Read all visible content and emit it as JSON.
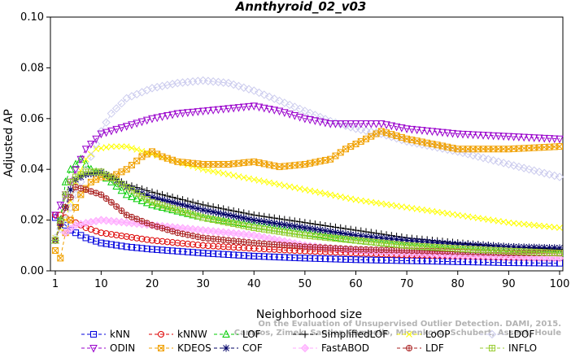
{
  "chart_data": {
    "type": "line",
    "title": "Annthyroid_02_v03",
    "xlabel": "Neighborhood size",
    "ylabel": "Adjusted AP",
    "xlim": [
      1,
      100
    ],
    "ylim": [
      0,
      0.1
    ],
    "xticks": [
      1,
      10,
      20,
      30,
      40,
      50,
      60,
      70,
      80,
      90,
      100
    ],
    "yticks": [
      0.0,
      0.02,
      0.04,
      0.06,
      0.08,
      0.1
    ],
    "ytick_labels": [
      "0.00",
      "0.02",
      "0.04",
      "0.06",
      "0.08",
      "0.10"
    ],
    "legend_position": "bottom",
    "grid": false,
    "watermark": [
      "Campos, Zimek, Sander, Campello, Micenkova, Schubert, Assent, Houle",
      "On the Evaluation of Unsupervised Outlier Detection. DAMI, 2015."
    ],
    "series": [
      {
        "name": "kNN",
        "color": "#0000dd",
        "marker": "square",
        "dash": "4,3",
        "points": [
          [
            1,
            0.021
          ],
          [
            2,
            0.02
          ],
          [
            3,
            0.018
          ],
          [
            4,
            0.016
          ],
          [
            5,
            0.015
          ],
          [
            7,
            0.013
          ],
          [
            10,
            0.011
          ],
          [
            15,
            0.0095
          ],
          [
            20,
            0.0085
          ],
          [
            30,
            0.007
          ],
          [
            40,
            0.0058
          ],
          [
            50,
            0.005
          ],
          [
            60,
            0.0044
          ],
          [
            70,
            0.004
          ],
          [
            80,
            0.0036
          ],
          [
            90,
            0.0032
          ],
          [
            100,
            0.003
          ]
        ]
      },
      {
        "name": "kNNW",
        "color": "#dd0000",
        "marker": "circle",
        "dash": "4,3",
        "points": [
          [
            1,
            0.022
          ],
          [
            2,
            0.022
          ],
          [
            3,
            0.021
          ],
          [
            4,
            0.02
          ],
          [
            5,
            0.019
          ],
          [
            7,
            0.017
          ],
          [
            10,
            0.015
          ],
          [
            15,
            0.0135
          ],
          [
            20,
            0.012
          ],
          [
            30,
            0.01
          ],
          [
            40,
            0.0088
          ],
          [
            50,
            0.0078
          ],
          [
            60,
            0.007
          ],
          [
            70,
            0.0063
          ],
          [
            80,
            0.0058
          ],
          [
            90,
            0.0053
          ],
          [
            100,
            0.005
          ]
        ]
      },
      {
        "name": "LOF",
        "color": "#00cc00",
        "marker": "triangle-up",
        "dash": "4,3",
        "points": [
          [
            1,
            0.012
          ],
          [
            2,
            0.02
          ],
          [
            3,
            0.035
          ],
          [
            4,
            0.04
          ],
          [
            5,
            0.042
          ],
          [
            6,
            0.044
          ],
          [
            8,
            0.04
          ],
          [
            10,
            0.038
          ],
          [
            12,
            0.035
          ],
          [
            15,
            0.03
          ],
          [
            20,
            0.026
          ],
          [
            30,
            0.021
          ],
          [
            40,
            0.018
          ],
          [
            50,
            0.015
          ],
          [
            60,
            0.012
          ],
          [
            70,
            0.01
          ],
          [
            80,
            0.0085
          ],
          [
            90,
            0.0075
          ],
          [
            100,
            0.007
          ]
        ]
      },
      {
        "name": "SimplifiedLOF",
        "color": "#000000",
        "marker": "plus",
        "dash": "4,3",
        "points": [
          [
            1,
            0.012
          ],
          [
            2,
            0.02
          ],
          [
            3,
            0.03
          ],
          [
            4,
            0.035
          ],
          [
            5,
            0.037
          ],
          [
            7,
            0.038
          ],
          [
            10,
            0.039
          ],
          [
            15,
            0.034
          ],
          [
            20,
            0.031
          ],
          [
            30,
            0.026
          ],
          [
            40,
            0.022
          ],
          [
            50,
            0.019
          ],
          [
            60,
            0.016
          ],
          [
            70,
            0.013
          ],
          [
            80,
            0.011
          ],
          [
            90,
            0.0095
          ],
          [
            100,
            0.0085
          ]
        ]
      },
      {
        "name": "LoOP",
        "color": "#ffff00",
        "marker": "cross",
        "dash": "4,3",
        "points": [
          [
            1,
            0.013
          ],
          [
            3,
            0.02
          ],
          [
            5,
            0.035
          ],
          [
            7,
            0.044
          ],
          [
            9,
            0.048
          ],
          [
            12,
            0.049
          ],
          [
            15,
            0.049
          ],
          [
            20,
            0.046
          ],
          [
            25,
            0.043
          ],
          [
            30,
            0.04
          ],
          [
            40,
            0.036
          ],
          [
            50,
            0.032
          ],
          [
            60,
            0.028
          ],
          [
            70,
            0.025
          ],
          [
            80,
            0.022
          ],
          [
            90,
            0.019
          ],
          [
            100,
            0.017
          ]
        ]
      },
      {
        "name": "LDOF",
        "color": "#ccccee",
        "marker": "diamond",
        "dash": "4,3",
        "points": [
          [
            1,
            0.013
          ],
          [
            3,
            0.02
          ],
          [
            5,
            0.03
          ],
          [
            8,
            0.045
          ],
          [
            10,
            0.055
          ],
          [
            12,
            0.062
          ],
          [
            15,
            0.068
          ],
          [
            20,
            0.072
          ],
          [
            25,
            0.074
          ],
          [
            30,
            0.075
          ],
          [
            35,
            0.074
          ],
          [
            40,
            0.071
          ],
          [
            45,
            0.067
          ],
          [
            50,
            0.063
          ],
          [
            55,
            0.059
          ],
          [
            60,
            0.056
          ],
          [
            65,
            0.054
          ],
          [
            70,
            0.051
          ],
          [
            80,
            0.047
          ],
          [
            90,
            0.042
          ],
          [
            100,
            0.037
          ]
        ]
      },
      {
        "name": "ODIN",
        "color": "#9900cc",
        "marker": "triangle-down",
        "dash": "4,3",
        "points": [
          [
            1,
            0.022
          ],
          [
            3,
            0.03
          ],
          [
            5,
            0.04
          ],
          [
            7,
            0.048
          ],
          [
            10,
            0.054
          ],
          [
            15,
            0.057
          ],
          [
            20,
            0.06
          ],
          [
            25,
            0.062
          ],
          [
            30,
            0.063
          ],
          [
            35,
            0.064
          ],
          [
            40,
            0.065
          ],
          [
            45,
            0.063
          ],
          [
            50,
            0.06
          ],
          [
            55,
            0.058
          ],
          [
            60,
            0.058
          ],
          [
            65,
            0.058
          ],
          [
            70,
            0.056
          ],
          [
            80,
            0.054
          ],
          [
            90,
            0.053
          ],
          [
            100,
            0.052
          ]
        ]
      },
      {
        "name": "KDEOS",
        "color": "#f0a000",
        "marker": "square-x",
        "dash": "4,3",
        "points": [
          [
            1,
            0.008
          ],
          [
            2,
            0.005
          ],
          [
            3,
            0.015
          ],
          [
            4,
            0.02
          ],
          [
            6,
            0.03
          ],
          [
            8,
            0.035
          ],
          [
            10,
            0.037
          ],
          [
            12,
            0.037
          ],
          [
            15,
            0.04
          ],
          [
            18,
            0.045
          ],
          [
            20,
            0.047
          ],
          [
            22,
            0.045
          ],
          [
            25,
            0.043
          ],
          [
            30,
            0.042
          ],
          [
            35,
            0.042
          ],
          [
            40,
            0.043
          ],
          [
            45,
            0.041
          ],
          [
            50,
            0.042
          ],
          [
            55,
            0.044
          ],
          [
            58,
            0.048
          ],
          [
            60,
            0.05
          ],
          [
            62,
            0.052
          ],
          [
            65,
            0.055
          ],
          [
            70,
            0.052
          ],
          [
            80,
            0.048
          ],
          [
            90,
            0.048
          ],
          [
            100,
            0.049
          ]
        ]
      },
      {
        "name": "COF",
        "color": "#000066",
        "marker": "asterisk",
        "dash": "4,3",
        "points": [
          [
            1,
            0.012
          ],
          [
            2,
            0.018
          ],
          [
            3,
            0.025
          ],
          [
            4,
            0.032
          ],
          [
            5,
            0.036
          ],
          [
            7,
            0.038
          ],
          [
            10,
            0.039
          ],
          [
            15,
            0.033
          ],
          [
            20,
            0.029
          ],
          [
            30,
            0.024
          ],
          [
            40,
            0.02
          ],
          [
            50,
            0.017
          ],
          [
            60,
            0.014
          ],
          [
            70,
            0.012
          ],
          [
            80,
            0.0105
          ],
          [
            90,
            0.0095
          ],
          [
            100,
            0.009
          ]
        ]
      },
      {
        "name": "FastABOD",
        "color": "#ffaaff",
        "marker": "diamond-filled",
        "dash": "4,3",
        "points": [
          [
            3,
            0.015
          ],
          [
            5,
            0.018
          ],
          [
            10,
            0.02
          ],
          [
            20,
            0.018
          ],
          [
            30,
            0.016
          ],
          [
            40,
            0.014
          ],
          [
            50,
            0.01
          ],
          [
            60,
            0.008
          ],
          [
            70,
            0.007
          ],
          [
            80,
            0.006
          ],
          [
            90,
            0.0055
          ],
          [
            100,
            0.005
          ]
        ]
      },
      {
        "name": "LDF",
        "color": "#aa2222",
        "marker": "circle-plus",
        "dash": "4,3",
        "points": [
          [
            1,
            0.012
          ],
          [
            3,
            0.025
          ],
          [
            5,
            0.033
          ],
          [
            7,
            0.032
          ],
          [
            10,
            0.03
          ],
          [
            12,
            0.027
          ],
          [
            15,
            0.022
          ],
          [
            20,
            0.018
          ],
          [
            25,
            0.015
          ],
          [
            30,
            0.013
          ],
          [
            40,
            0.011
          ],
          [
            50,
            0.0095
          ],
          [
            60,
            0.0085
          ],
          [
            70,
            0.008
          ],
          [
            80,
            0.0075
          ],
          [
            90,
            0.007
          ],
          [
            100,
            0.007
          ]
        ]
      },
      {
        "name": "INFLO",
        "color": "#99cc33",
        "marker": "square-plus",
        "dash": "4,3",
        "points": [
          [
            1,
            0.012
          ],
          [
            2,
            0.02
          ],
          [
            3,
            0.03
          ],
          [
            4,
            0.035
          ],
          [
            5,
            0.037
          ],
          [
            7,
            0.039
          ],
          [
            10,
            0.039
          ],
          [
            15,
            0.033
          ],
          [
            20,
            0.027
          ],
          [
            30,
            0.021
          ],
          [
            40,
            0.017
          ],
          [
            50,
            0.014
          ],
          [
            60,
            0.012
          ],
          [
            70,
            0.01
          ],
          [
            80,
            0.0088
          ],
          [
            90,
            0.0078
          ],
          [
            100,
            0.007
          ]
        ]
      }
    ]
  }
}
